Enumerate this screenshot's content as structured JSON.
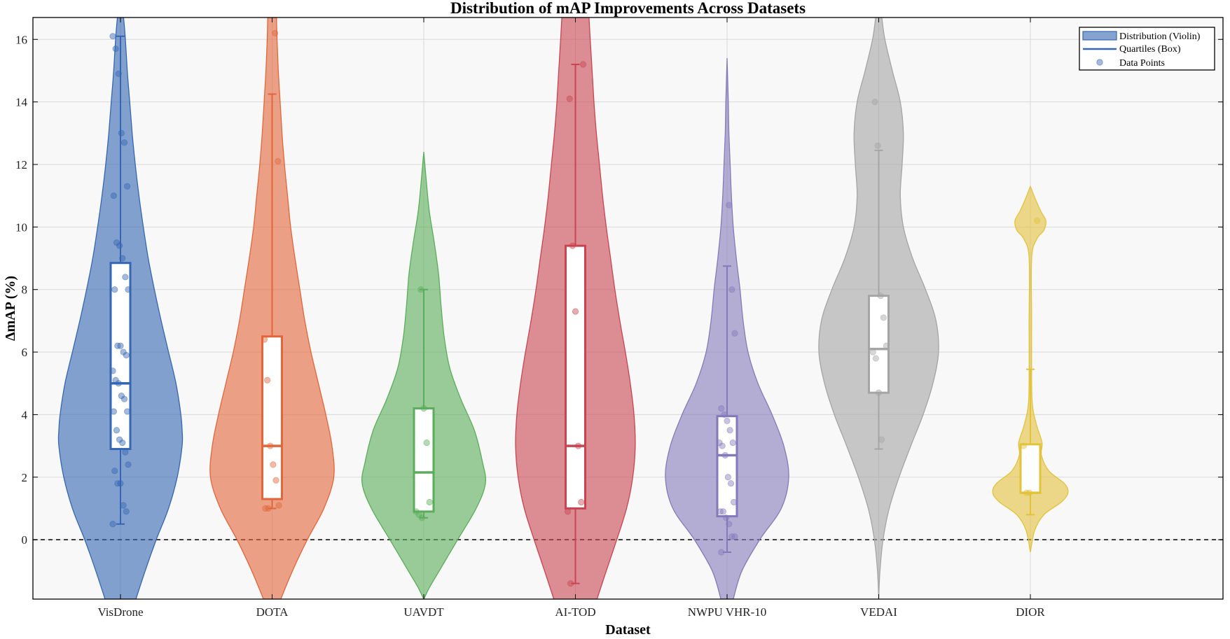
{
  "chart_data": {
    "type": "violin",
    "title": "Distribution of mAP Improvements Across Datasets",
    "xlabel": "Dataset",
    "ylabel": "ΔmAP (%)",
    "ylim": [
      -1.9,
      16.7
    ],
    "yticks": [
      0,
      2,
      4,
      6,
      8,
      10,
      12,
      14,
      16
    ],
    "grid": true,
    "reference_line_y": 0,
    "legend_position": "top-right",
    "legend": [
      "Distribution (Violin)",
      "Quartiles (Box)",
      "Data Points"
    ],
    "categories": [
      "VisDrone",
      "DOTA",
      "UAVDT",
      "AI-TOD",
      "NWPU VHR-10",
      "VEDAI",
      "DIOR"
    ],
    "series": [
      {
        "name": "VisDrone",
        "color": "#3466b3",
        "box": {
          "q1": 2.9,
          "median": 5.0,
          "q3": 8.85,
          "whisker_low": 0.5,
          "whisker_high": 16.1
        },
        "violin": [
          [
            -1.9,
            0.25
          ],
          [
            -1.0,
            0.4
          ],
          [
            0,
            0.58
          ],
          [
            1,
            0.78
          ],
          [
            2,
            0.92
          ],
          [
            3,
            1.0
          ],
          [
            3.5,
            1.0
          ],
          [
            4,
            0.98
          ],
          [
            5,
            0.9
          ],
          [
            6,
            0.78
          ],
          [
            7,
            0.66
          ],
          [
            8,
            0.55
          ],
          [
            9,
            0.45
          ],
          [
            10,
            0.37
          ],
          [
            11,
            0.3
          ],
          [
            12,
            0.24
          ],
          [
            13,
            0.19
          ],
          [
            14,
            0.15
          ],
          [
            15,
            0.11
          ],
          [
            16,
            0.08
          ],
          [
            16.7,
            0.05
          ]
        ],
        "points": [
          16.1,
          15.7,
          14.9,
          13.0,
          12.7,
          11.3,
          11.0,
          9.5,
          9.4,
          9.0,
          8.4,
          8.0,
          8.0,
          6.2,
          6.2,
          6.0,
          5.9,
          5.4,
          5.1,
          5.0,
          4.6,
          4.5,
          4.1,
          4.1,
          3.5,
          3.2,
          3.1,
          2.8,
          2.4,
          2.2,
          1.8,
          1.8,
          1.1,
          0.9,
          0.5
        ]
      },
      {
        "name": "DOTA",
        "color": "#e3653a",
        "box": {
          "q1": 1.3,
          "median": 3.0,
          "q3": 6.5,
          "whisker_low": 1.0,
          "whisker_high": 14.25
        },
        "violin": [
          [
            -1.9,
            0.14
          ],
          [
            -1.0,
            0.33
          ],
          [
            0,
            0.57
          ],
          [
            1,
            0.84
          ],
          [
            2,
            1.0
          ],
          [
            3,
            0.97
          ],
          [
            4,
            0.87
          ],
          [
            5,
            0.75
          ],
          [
            6,
            0.63
          ],
          [
            7,
            0.53
          ],
          [
            8,
            0.45
          ],
          [
            9,
            0.37
          ],
          [
            10,
            0.3
          ],
          [
            11,
            0.25
          ],
          [
            12,
            0.2
          ],
          [
            13,
            0.16
          ],
          [
            14,
            0.13
          ],
          [
            15,
            0.1
          ],
          [
            16,
            0.08
          ],
          [
            16.7,
            0.07
          ]
        ],
        "points": [
          16.2,
          12.1,
          6.4,
          5.1,
          3.0,
          2.4,
          1.9,
          1.1,
          1.0,
          1.0
        ]
      },
      {
        "name": "UAVDT",
        "color": "#5aad5a",
        "box": {
          "q1": 0.9,
          "median": 2.15,
          "q3": 4.2,
          "whisker_low": 0.7,
          "whisker_high": 8.0
        },
        "violin": [
          [
            -1.9,
            0.0
          ],
          [
            -1.5,
            0.1
          ],
          [
            -1.0,
            0.25
          ],
          [
            0,
            0.55
          ],
          [
            1,
            0.85
          ],
          [
            1.8,
            1.0
          ],
          [
            2.5,
            0.95
          ],
          [
            3.5,
            0.82
          ],
          [
            4.5,
            0.6
          ],
          [
            5.5,
            0.42
          ],
          [
            6.5,
            0.33
          ],
          [
            7.5,
            0.28
          ],
          [
            8.5,
            0.24
          ],
          [
            9.5,
            0.17
          ],
          [
            10.5,
            0.09
          ],
          [
            11.5,
            0.04
          ],
          [
            12.4,
            0.0
          ]
        ],
        "points": [
          8.0,
          4.2,
          3.1,
          1.2,
          0.9,
          0.8,
          0.7
        ]
      },
      {
        "name": "AI-TOD",
        "color": "#c94450",
        "box": {
          "q1": 1.0,
          "median": 3.0,
          "q3": 9.4,
          "whisker_low": -1.4,
          "whisker_high": 15.2
        },
        "violin": [
          [
            -1.9,
            0.35
          ],
          [
            -1.0,
            0.5
          ],
          [
            0,
            0.67
          ],
          [
            1,
            0.83
          ],
          [
            2,
            0.93
          ],
          [
            3,
            0.97
          ],
          [
            4,
            0.95
          ],
          [
            5,
            0.89
          ],
          [
            6,
            0.81
          ],
          [
            7,
            0.72
          ],
          [
            8,
            0.64
          ],
          [
            9,
            0.57
          ],
          [
            10,
            0.5
          ],
          [
            11,
            0.44
          ],
          [
            12,
            0.39
          ],
          [
            13,
            0.34
          ],
          [
            14,
            0.3
          ],
          [
            15,
            0.27
          ],
          [
            16,
            0.24
          ],
          [
            16.7,
            0.22
          ]
        ],
        "points": [
          15.2,
          14.1,
          9.4,
          7.3,
          3.0,
          1.2,
          0.9,
          -1.4
        ]
      },
      {
        "name": "NWPU VHR-10",
        "color": "#8679bb",
        "box": {
          "q1": 0.75,
          "median": 2.7,
          "q3": 3.95,
          "whisker_low": -0.4,
          "whisker_high": 8.75
        },
        "violin": [
          [
            -1.9,
            0.1
          ],
          [
            -1.0,
            0.24
          ],
          [
            0,
            0.53
          ],
          [
            1,
            0.88
          ],
          [
            2,
            1.0
          ],
          [
            3,
            0.92
          ],
          [
            4,
            0.73
          ],
          [
            5,
            0.5
          ],
          [
            6,
            0.34
          ],
          [
            7,
            0.26
          ],
          [
            8,
            0.21
          ],
          [
            9,
            0.15
          ],
          [
            10,
            0.1
          ],
          [
            11,
            0.07
          ],
          [
            12,
            0.05
          ],
          [
            13,
            0.03
          ],
          [
            14,
            0.02
          ],
          [
            15.4,
            0.0
          ]
        ],
        "points": [
          10.7,
          8.0,
          6.6,
          4.2,
          4.0,
          3.8,
          3.5,
          3.1,
          3.1,
          3.0,
          2.7,
          2.0,
          1.8,
          1.2,
          0.9,
          0.9,
          0.7,
          0.5,
          0.1,
          0.1,
          -0.4
        ]
      },
      {
        "name": "VEDAI",
        "color": "#a5a5a5",
        "box": {
          "q1": 4.7,
          "median": 6.1,
          "q3": 7.8,
          "whisker_low": 2.9,
          "whisker_high": 12.45
        },
        "violin": [
          [
            -1.9,
            0.0
          ],
          [
            -1.0,
            0.02
          ],
          [
            0,
            0.07
          ],
          [
            1,
            0.17
          ],
          [
            2,
            0.33
          ],
          [
            3,
            0.52
          ],
          [
            4,
            0.72
          ],
          [
            5,
            0.88
          ],
          [
            6,
            0.97
          ],
          [
            7,
            0.93
          ],
          [
            8,
            0.76
          ],
          [
            9,
            0.55
          ],
          [
            10,
            0.4
          ],
          [
            11,
            0.35
          ],
          [
            12,
            0.38
          ],
          [
            13,
            0.4
          ],
          [
            14,
            0.35
          ],
          [
            15,
            0.22
          ],
          [
            16,
            0.1
          ],
          [
            16.7,
            0.05
          ]
        ],
        "points": [
          14.0,
          12.6,
          7.8,
          7.1,
          6.2,
          6.0,
          5.8,
          4.7,
          3.2
        ]
      },
      {
        "name": "DIOR",
        "color": "#e3c23c",
        "box": {
          "q1": 1.5,
          "median": 1.5,
          "q3": 3.05,
          "whisker_low": 0.8,
          "whisker_high": 5.45
        },
        "violin": [
          [
            -0.4,
            0.0
          ],
          [
            0.3,
            0.07
          ],
          [
            0.8,
            0.22
          ],
          [
            1.2,
            0.5
          ],
          [
            1.5,
            0.61
          ],
          [
            1.8,
            0.55
          ],
          [
            2.2,
            0.3
          ],
          [
            2.7,
            0.18
          ],
          [
            3.1,
            0.19
          ],
          [
            3.6,
            0.11
          ],
          [
            4.2,
            0.04
          ],
          [
            5.0,
            0.02
          ],
          [
            7.0,
            0.02
          ],
          [
            9.0,
            0.02
          ],
          [
            9.6,
            0.1
          ],
          [
            9.9,
            0.22
          ],
          [
            10.2,
            0.25
          ],
          [
            10.5,
            0.17
          ],
          [
            10.9,
            0.08
          ],
          [
            11.3,
            0.0
          ]
        ],
        "points": [
          10.2,
          3.0,
          1.5,
          1.5
        ]
      }
    ]
  }
}
